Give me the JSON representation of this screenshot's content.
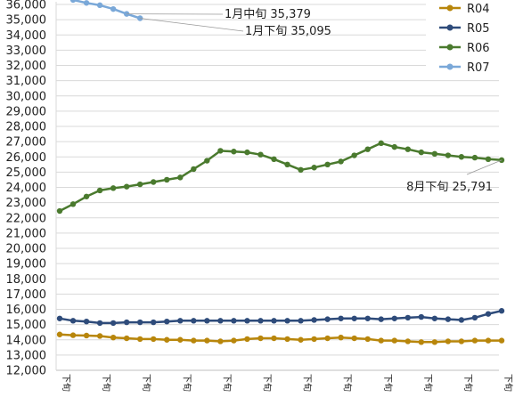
{
  "chart_data": {
    "type": "line",
    "ylim": [
      12000,
      36000
    ],
    "y_ticks": [
      "12,000",
      "13,000",
      "14,000",
      "15,000",
      "16,000",
      "17,000",
      "18,000",
      "19,000",
      "20,000",
      "21,000",
      "22,000",
      "23,000",
      "24,000",
      "25,000",
      "26,000",
      "27,000",
      "28,000",
      "29,000",
      "30,000",
      "31,000",
      "32,000",
      "33,000",
      "34,000",
      "35,000",
      "36,000"
    ],
    "x_tick_labels": [
      "下旬",
      "下旬",
      "下旬",
      "下旬",
      "下旬",
      "下旬",
      "下旬",
      "下旬",
      "下旬",
      "下旬",
      "下旬",
      "下旬"
    ],
    "grid": true,
    "legend_position": "top-right",
    "series": [
      {
        "name": "R04",
        "color": "#b8860b",
        "values": [
          14350,
          14300,
          14280,
          14250,
          14150,
          14100,
          14050,
          14050,
          14000,
          14000,
          13950,
          13950,
          13900,
          13950,
          14050,
          14100,
          14100,
          14050,
          14000,
          14050,
          14100,
          14150,
          14100,
          14050,
          13950,
          13950,
          13900,
          13850,
          13850,
          13900,
          13900,
          13950,
          13950,
          13950
        ]
      },
      {
        "name": "R05",
        "color": "#2e4b7a",
        "values": [
          15400,
          15250,
          15200,
          15100,
          15100,
          15150,
          15150,
          15150,
          15200,
          15250,
          15250,
          15250,
          15250,
          15250,
          15250,
          15250,
          15250,
          15250,
          15250,
          15300,
          15350,
          15400,
          15400,
          15400,
          15350,
          15400,
          15450,
          15500,
          15400,
          15350,
          15300,
          15450,
          15700,
          15900
        ]
      },
      {
        "name": "R06",
        "color": "#4a7a2e",
        "values": [
          22450,
          22900,
          23400,
          23800,
          23950,
          24050,
          24200,
          24350,
          24500,
          24650,
          25200,
          25750,
          26400,
          26350,
          26300,
          26150,
          25850,
          25500,
          25150,
          25300,
          25500,
          25700,
          26100,
          26500,
          26900,
          26650,
          26500,
          26300,
          26200,
          26100,
          26000,
          25950,
          25850,
          25791
        ]
      },
      {
        "name": "R07",
        "color": "#7aa8d8",
        "values": [
          36600,
          36300,
          36100,
          35950,
          35700,
          35379,
          35095
        ]
      }
    ],
    "annotations": [
      {
        "text": "1月中旬 35,379"
      },
      {
        "text": "1月下旬 35,095"
      },
      {
        "text": "8月下旬 25,791"
      }
    ]
  }
}
